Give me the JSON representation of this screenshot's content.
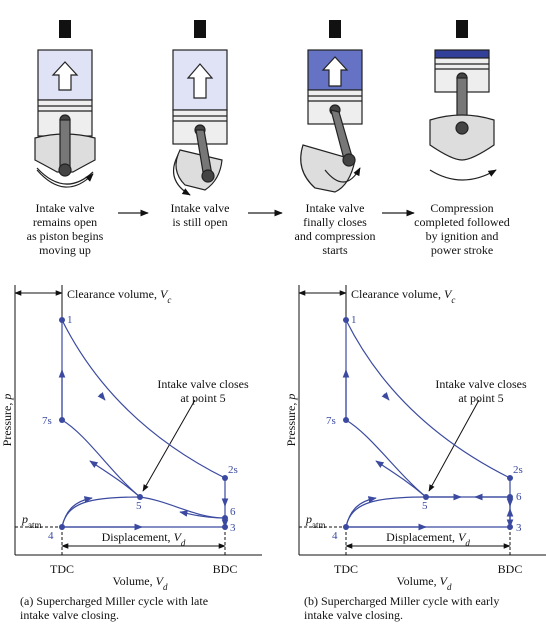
{
  "stages": [
    {
      "lines": [
        "Intake valve",
        "remains open",
        "as piston begins",
        "moving up"
      ]
    },
    {
      "lines": [
        "Intake valve",
        "is still open"
      ]
    },
    {
      "lines": [
        "Intake valve",
        "finally closes",
        "and compression",
        "starts"
      ]
    },
    {
      "lines": [
        "Compression",
        "completed followed",
        "by ignition and",
        "power stroke"
      ]
    }
  ],
  "diagrams": [
    {
      "clearance_text": "Clearance volume, ",
      "volume_symbol": "V",
      "clearance_sub": "c",
      "pressure_label": "Pressure, ",
      "pressure_symbol": "p",
      "volume_label": "Volume, ",
      "volume_sub": "d",
      "tdc": "TDC",
      "bdc": "BDC",
      "patm_symbol": "p",
      "patm_sub": "atm",
      "displacement_text": "Displacement, ",
      "displacement_sub": "d",
      "note": [
        "Intake valve closes",
        "at point 5"
      ],
      "points": [
        "1",
        "7s",
        "2s",
        "5",
        "6",
        "3",
        "4"
      ],
      "caption": [
        "(a) Supercharged Miller cycle with late",
        "intake valve closing."
      ]
    },
    {
      "clearance_text": "Clearance volume, ",
      "volume_symbol": "V",
      "clearance_sub": "c",
      "pressure_label": "Pressure, ",
      "pressure_symbol": "p",
      "volume_label": "Volume, ",
      "volume_sub": "d",
      "tdc": "TDC",
      "bdc": "BDC",
      "patm_symbol": "p",
      "patm_sub": "atm",
      "displacement_text": "Displacement, ",
      "displacement_sub": "d",
      "note": [
        "Intake valve closes",
        "at point 5"
      ],
      "points": [
        "1",
        "7s",
        "2s",
        "5",
        "6",
        "3",
        "4"
      ],
      "caption": [
        "(b) Supercharged Miller cycle with early",
        "intake valve closing."
      ]
    }
  ]
}
